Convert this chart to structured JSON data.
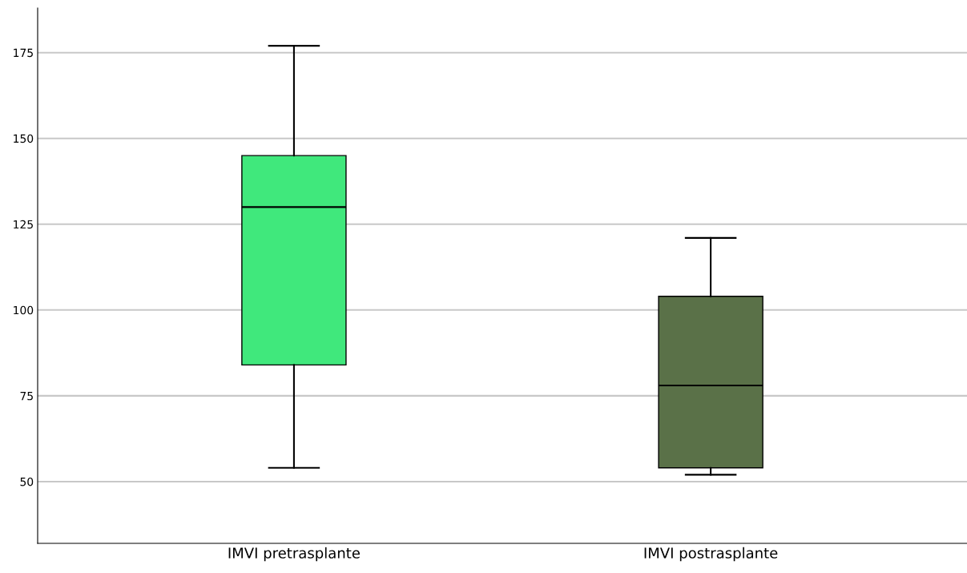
{
  "chart_data": {
    "type": "box",
    "categories": [
      "IMVI pretrasplante",
      "IMVI postrasplante"
    ],
    "boxes": [
      {
        "low": 54,
        "q1": 84,
        "median": 130,
        "q3": 145,
        "high": 177
      },
      {
        "low": 52,
        "q1": 54,
        "median": 78,
        "q3": 104,
        "high": 121
      }
    ],
    "colors": [
      "#40e87c",
      "#5a7148"
    ],
    "ylim": [
      32,
      188
    ],
    "yticks": [
      50,
      75,
      100,
      125,
      150,
      175
    ],
    "grid": "y"
  }
}
